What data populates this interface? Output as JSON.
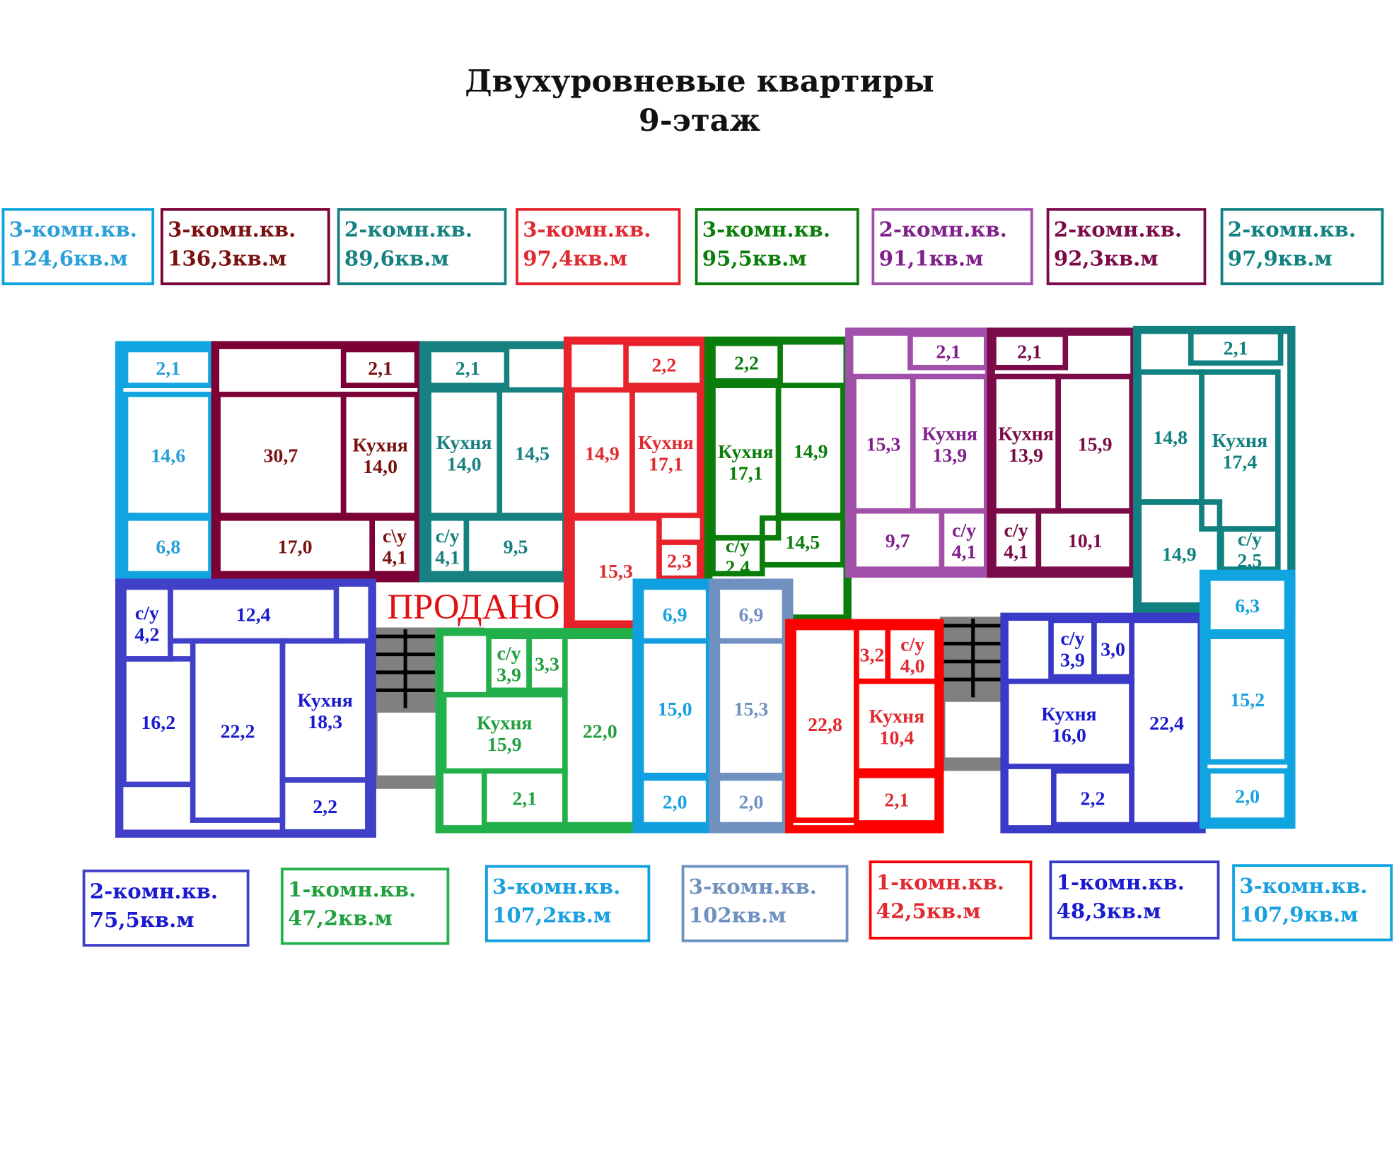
{
  "title": {
    "line1": "Двухуровневые квартиры",
    "line2": "9-этаж"
  },
  "sold_label": "ПРОДАНО",
  "apartments": [
    {
      "id": "a1",
      "color": "#10a5e0",
      "text": "#2a9fd8",
      "legend": {
        "rooms": "3-комн.кв.",
        "area": "124,6кв.м"
      },
      "rooms": [
        {
          "area": "2,1"
        },
        {
          "area": "14,6"
        },
        {
          "area": "6,8"
        }
      ]
    },
    {
      "id": "a2",
      "color": "#7a0036",
      "text": "#7a1010",
      "legend": {
        "rooms": "3-комн.кв.",
        "area": "136,3кв.м"
      },
      "rooms": [
        {
          "area": "2,1"
        },
        {
          "area": "30,7"
        },
        {
          "name": "Кухня",
          "area": "14,0"
        },
        {
          "area": "17,0"
        },
        {
          "name": "с\\у",
          "area": "4,1"
        }
      ]
    },
    {
      "id": "a3",
      "color": "#178080",
      "text": "#178080",
      "legend": {
        "rooms": "2-комн.кв.",
        "area": "89,6кв.м"
      },
      "rooms": [
        {
          "area": "2,1"
        },
        {
          "name": "Кухня",
          "area": "14,0"
        },
        {
          "area": "14,5"
        },
        {
          "name": "с/у",
          "area": "4,1"
        },
        {
          "area": "9,5"
        }
      ]
    },
    {
      "id": "a4",
      "color": "#e8222a",
      "text": "#e02a30",
      "legend": {
        "rooms": "3-комн.кв.",
        "area": "97,4кв.м"
      },
      "rooms": [
        {
          "area": "2,2"
        },
        {
          "area": "14,9"
        },
        {
          "name": "Кухня",
          "area": "17,1"
        },
        {
          "area": "15,3"
        },
        {
          "area": "2,3"
        }
      ]
    },
    {
      "id": "a5",
      "color": "#0a7d0a",
      "text": "#0a7d0a",
      "legend": {
        "rooms": "3-комн.кв.",
        "area": "95,5кв.м"
      },
      "rooms": [
        {
          "area": "2,2"
        },
        {
          "name": "Кухня",
          "area": "17,1"
        },
        {
          "area": "14,9"
        },
        {
          "name": "с/у",
          "area": "2,4"
        },
        {
          "area": "14,5"
        }
      ]
    },
    {
      "id": "a6",
      "color": "#a050a8",
      "text": "#80208a",
      "legend": {
        "rooms": "2-комн.кв.",
        "area": "91,1кв.м"
      },
      "rooms": [
        {
          "area": "2,1"
        },
        {
          "area": "15,3"
        },
        {
          "name": "Кухня",
          "area": "13,9"
        },
        {
          "area": "9,7"
        },
        {
          "name": "с/у",
          "area": "4,1"
        }
      ]
    },
    {
      "id": "a7",
      "color": "#7a0a48",
      "text": "#7a0a48",
      "legend": {
        "rooms": "2-комн.кв.",
        "area": "92,3кв.м"
      },
      "rooms": [
        {
          "area": "2,1"
        },
        {
          "name": "Кухня",
          "area": "13,9"
        },
        {
          "area": "15,9"
        },
        {
          "name": "с/у",
          "area": "4,1"
        },
        {
          "area": "10,1"
        }
      ]
    },
    {
      "id": "a8",
      "color": "#118080",
      "text": "#118080",
      "legend": {
        "rooms": "2-комн.кв.",
        "area": "97,9кв.м"
      },
      "rooms": [
        {
          "area": "2,1"
        },
        {
          "area": "14,8"
        },
        {
          "name": "Кухня",
          "area": "17,4"
        },
        {
          "area": "14,9"
        },
        {
          "name": "с/у",
          "area": "2,5"
        }
      ]
    },
    {
      "id": "b1",
      "color": "#4040c8",
      "text": "#1a1ad0",
      "legend": {
        "rooms": "2-комн.кв.",
        "area": "75,5кв.м"
      },
      "rooms": [
        {
          "name": "с/у",
          "area": "4,2"
        },
        {
          "area": "12,4"
        },
        {
          "area": "16,2"
        },
        {
          "area": "22,2"
        },
        {
          "name": "Кухня",
          "area": "18,3"
        },
        {
          "area": "2,2"
        }
      ]
    },
    {
      "id": "b2",
      "color": "#22b04a",
      "text": "#22a040",
      "legend": {
        "rooms": "1-комн.кв.",
        "area": "47,2кв.м"
      },
      "rooms": [
        {
          "name": "с/у",
          "area": "3,9"
        },
        {
          "area": "3,3"
        },
        {
          "name": "Кухня",
          "area": "15,9"
        },
        {
          "area": "2,1"
        },
        {
          "area": "22,0"
        }
      ]
    },
    {
      "id": "b3",
      "color": "#10a0e0",
      "text": "#18a0e0",
      "legend": {
        "rooms": "3-комн.кв.",
        "area": "107,2кв.м"
      },
      "rooms": [
        {
          "area": "6,9"
        },
        {
          "area": "15,0"
        },
        {
          "area": "2,0"
        }
      ]
    },
    {
      "id": "b4",
      "color": "#7090c0",
      "text": "#7090c0",
      "legend": {
        "rooms": "3-комн.кв.",
        "area": "102кв.м"
      },
      "rooms": [
        {
          "area": "6,9"
        },
        {
          "area": "15,3"
        },
        {
          "area": "2,0"
        }
      ]
    },
    {
      "id": "b5",
      "color": "#ff0000",
      "text": "#e02a30",
      "legend": {
        "rooms": "1-комн.кв.",
        "area": "42,5кв.м"
      },
      "rooms": [
        {
          "area": "22,8"
        },
        {
          "area": "3,2"
        },
        {
          "name": "с/у",
          "area": "4,0"
        },
        {
          "name": "Кухня",
          "area": "10,4"
        },
        {
          "area": "2,1"
        }
      ]
    },
    {
      "id": "b6",
      "color": "#3a3ac8",
      "text": "#1a1ad0",
      "legend": {
        "rooms": "1-комн.кв.",
        "area": "48,3кв.м"
      },
      "rooms": [
        {
          "name": "с/у",
          "area": "3,9"
        },
        {
          "area": "3,0"
        },
        {
          "name": "Кухня",
          "area": "16,0"
        },
        {
          "area": "2,2"
        },
        {
          "area": "22,4"
        }
      ]
    },
    {
      "id": "b7",
      "color": "#10a5e0",
      "text": "#18a0e0",
      "legend": {
        "rooms": "3-комн.кв.",
        "area": "107,9кв.м"
      },
      "rooms": [
        {
          "area": "6,3"
        },
        {
          "area": "15,2"
        },
        {
          "area": "2,0"
        }
      ]
    }
  ],
  "stair_color": "#808080"
}
